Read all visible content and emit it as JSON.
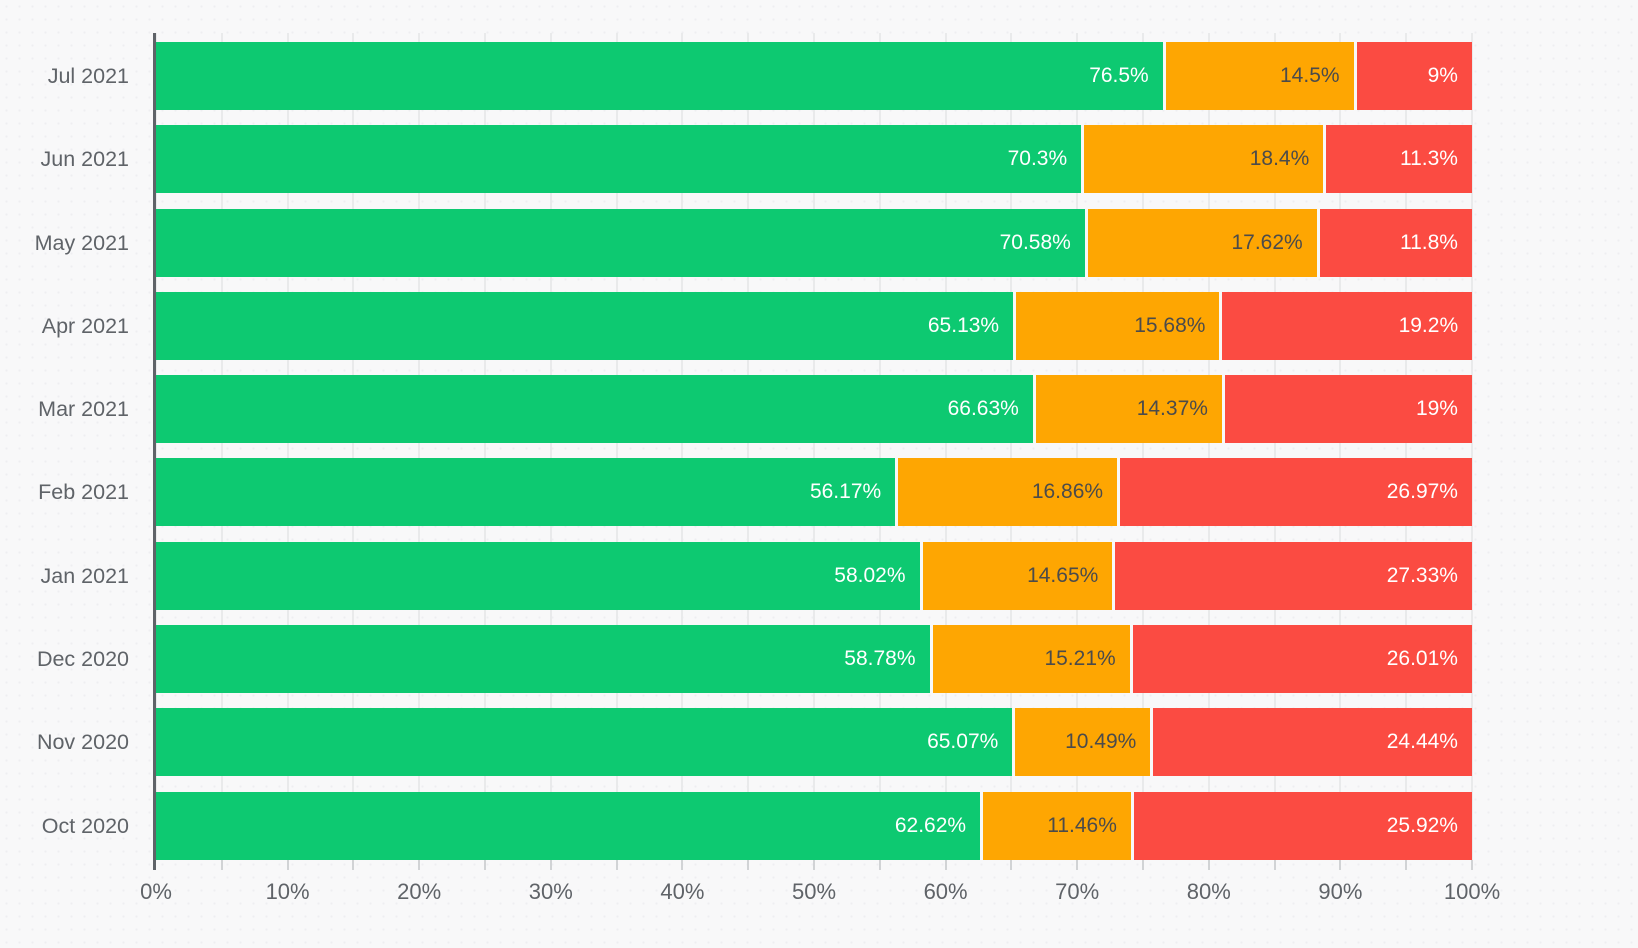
{
  "chart_data": {
    "type": "bar",
    "subtype": "horizontal-stacked-percent",
    "title": "",
    "xlabel": "",
    "ylabel": "",
    "xlim": [
      0,
      100
    ],
    "x_tick_labels": [
      "0%",
      "10%",
      "20%",
      "30%",
      "40%",
      "50%",
      "60%",
      "70%",
      "80%",
      "90%",
      "100%"
    ],
    "minor_tick_step_percent": 5,
    "grid": "vertical-minor-every-5pct",
    "legend_position": "none",
    "categories": [
      "Jul 2021",
      "Jun 2021",
      "May 2021",
      "Apr 2021",
      "Mar 2021",
      "Feb 2021",
      "Jan 2021",
      "Dec 2020",
      "Nov 2020",
      "Oct 2020"
    ],
    "series": [
      {
        "name": "green",
        "color": "#0dc971",
        "label_color": "#ffffff",
        "values": [
          76.5,
          70.3,
          70.58,
          65.13,
          66.63,
          56.17,
          58.02,
          58.78,
          65.07,
          62.62
        ],
        "labels": [
          "76.5%",
          "70.3%",
          "70.58%",
          "65.13%",
          "66.63%",
          "56.17%",
          "58.02%",
          "58.78%",
          "65.07%",
          "62.62%"
        ]
      },
      {
        "name": "orange",
        "color": "#fea602",
        "label_color": "#4b4b4b",
        "values": [
          14.5,
          18.4,
          17.62,
          15.68,
          14.37,
          16.86,
          14.65,
          15.21,
          10.49,
          11.46
        ],
        "labels": [
          "14.5%",
          "18.4%",
          "17.62%",
          "15.68%",
          "14.37%",
          "16.86%",
          "14.65%",
          "15.21%",
          "10.49%",
          "11.46%"
        ]
      },
      {
        "name": "red",
        "color": "#fb4b42",
        "label_color": "#ffffff",
        "values": [
          9,
          11.3,
          11.8,
          19.2,
          19,
          26.97,
          27.33,
          26.01,
          24.44,
          25.92
        ],
        "labels": [
          "9%",
          "11.3%",
          "11.8%",
          "19.2%",
          "19%",
          "26.97%",
          "27.33%",
          "26.01%",
          "24.44%",
          "25.92%"
        ]
      }
    ]
  },
  "style": {
    "background": "#f8f8f9",
    "axis_color": "#5f6368",
    "gridline_color": "#e9eaeb",
    "tick_color": "#d1d3d5",
    "category_label_color": "#5f6368",
    "x_label_color": "#5f6368"
  }
}
